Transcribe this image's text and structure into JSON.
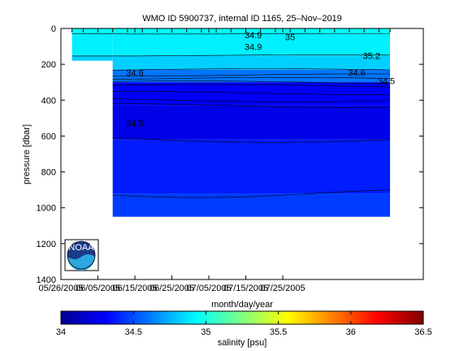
{
  "chart_data": {
    "type": "heatmap",
    "title": "WMO ID 5900737, internal ID 1165, 25–Nov–2019",
    "xlabel": "month/day/year",
    "ylabel": "pressure [dbar]",
    "colorbar_label": "salinity [psu]",
    "x_ticks": [
      "05/26/2005",
      "06/05/2005",
      "06/15/2005",
      "06/25/2005",
      "07/05/2005",
      "07/15/2005",
      "07/25/2005"
    ],
    "y_ticks": [
      0,
      200,
      400,
      600,
      800,
      1000,
      1200,
      1400
    ],
    "ylim": [
      0,
      1400
    ],
    "y_reversed": true,
    "colorbar_ticks": [
      34,
      34.5,
      35,
      35.5,
      36,
      36.5
    ],
    "clim": [
      34,
      36.5
    ],
    "colormap": [
      "#00008f",
      "#0000ff",
      "#00ffff",
      "#ffff00",
      "#ff0000",
      "#800000"
    ],
    "profile_days": [
      3,
      6,
      10,
      14,
      18,
      22,
      26,
      30,
      34,
      38,
      42,
      46,
      50,
      54,
      58,
      62,
      66,
      70,
      74,
      78,
      82,
      86,
      89
    ],
    "contour_labels": [
      "34.9",
      "34.9",
      "35",
      "35.2",
      "34.6",
      "34.6",
      "34.5",
      "34.5"
    ],
    "shallow_profiles_max_pressure": 180,
    "deep_profiles_start_day": 14,
    "max_pressure": 1050,
    "salinity_levels": [
      {
        "from": 0,
        "to": 30,
        "value": 34.95
      },
      {
        "from": 30,
        "to": 150,
        "value": 34.9
      },
      {
        "from": 150,
        "to": 230,
        "value": 34.82
      },
      {
        "from": 230,
        "to": 300,
        "value": 34.6
      },
      {
        "from": 300,
        "to": 430,
        "value": 34.3
      },
      {
        "from": 430,
        "to": 620,
        "value": 34.25
      },
      {
        "from": 620,
        "to": 920,
        "value": 34.38
      },
      {
        "from": 920,
        "to": 1050,
        "value": 34.46
      }
    ]
  },
  "logo": {
    "label": "NOAA"
  }
}
